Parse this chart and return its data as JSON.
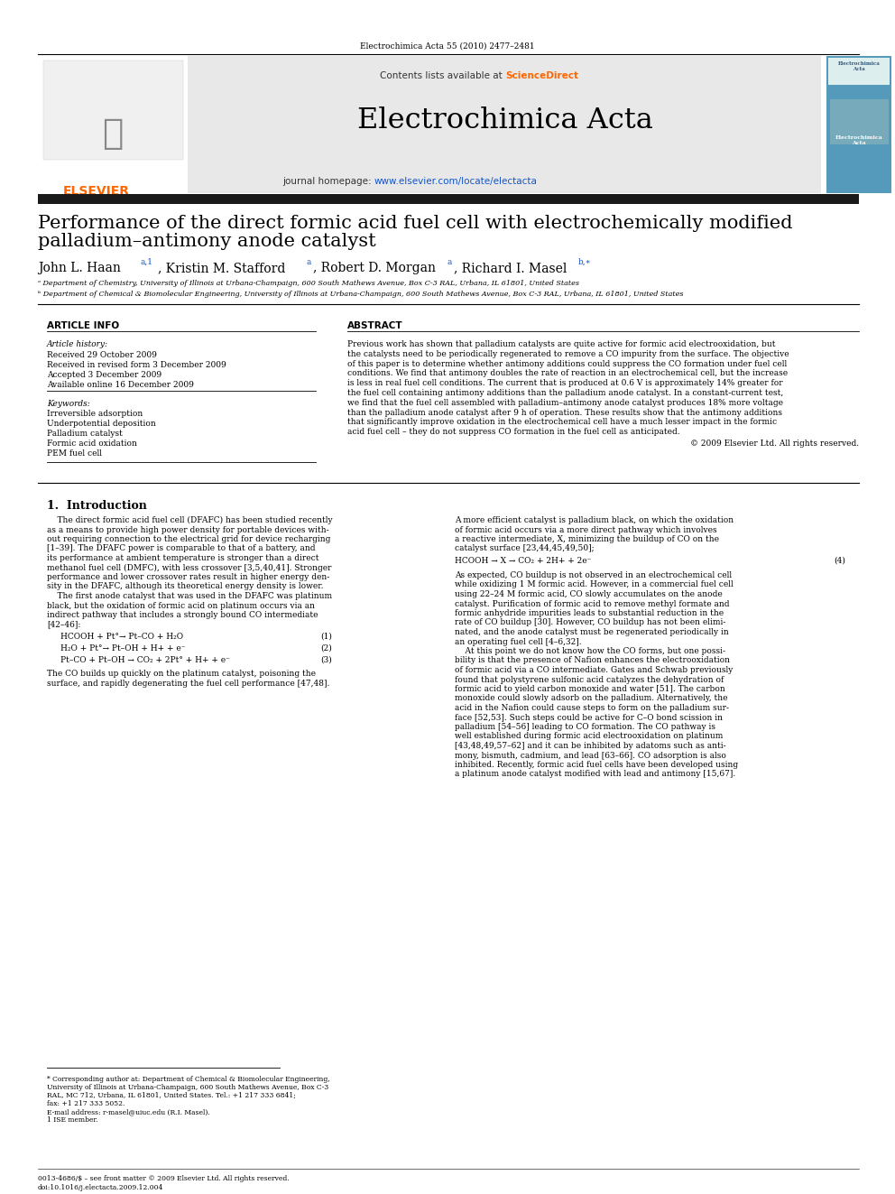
{
  "journal_ref": "Electrochimica Acta 55 (2010) 2477–2481",
  "journal_name": "Electrochimica Acta",
  "contents_text": "Contents lists available at ScienceDirect",
  "journal_url": "www.elsevier.com/locate/electacta",
  "sd_color": "#FF6600",
  "url_color": "#1155CC",
  "blue_color": "#1155CC",
  "gray_bg": "#e8e8e8",
  "dark_bar_color": "#222222",
  "title_line1": "Performance of the direct formic acid fuel cell with electrochemically modified",
  "title_line2": "palladium–antimony anode catalyst",
  "author_name1": "John L. Haan",
  "author_sup1": "a,1",
  "author_name2": ", Kristin M. Stafford",
  "author_sup2": "a",
  "author_name3": ", Robert D. Morgan",
  "author_sup3": "a",
  "author_name4": ", Richard I. Masel",
  "author_sup4": "b,∗",
  "affil_a": "ᵃ Department of Chemistry, University of Illinois at Urbana-Champaign, 600 South Mathews Avenue, Box C-3 RAL, Urbana, IL 61801, United States",
  "affil_b": "ᵇ Department of Chemical & Biomolecular Engineering, University of Illinois at Urbana-Champaign, 600 South Mathews Avenue, Box C-3 RAL, Urbana, IL 61801, United States",
  "section_ai": "ARTICLE INFO",
  "section_abs": "ABSTRACT",
  "history_label": "Article history:",
  "received1": "Received 29 October 2009",
  "received2": "Received in revised form 3 December 2009",
  "accepted": "Accepted 3 December 2009",
  "available": "Available online 16 December 2009",
  "kw_label": "Keywords:",
  "keywords": [
    "Irreversible adsorption",
    "Underpotential deposition",
    "Palladium catalyst",
    "Formic acid oxidation",
    "PEM fuel cell"
  ],
  "abstract_lines": [
    "Previous work has shown that palladium catalysts are quite active for formic acid electrooxidation, but",
    "the catalysts need to be periodically regenerated to remove a CO impurity from the surface. The objective",
    "of this paper is to determine whether antimony additions could suppress the CO formation under fuel cell",
    "conditions. We find that antimony doubles the rate of reaction in an electrochemical cell, but the increase",
    "is less in real fuel cell conditions. The current that is produced at 0.6 V is approximately 14% greater for",
    "the fuel cell containing antimony additions than the palladium anode catalyst. In a constant-current test,",
    "we find that the fuel cell assembled with palladium–antimony anode catalyst produces 18% more voltage",
    "than the palladium anode catalyst after 9 h of operation. These results show that the antimony additions",
    "that significantly improve oxidation in the electrochemical cell have a much lesser impact in the formic",
    "acid fuel cell – they do not suppress CO formation in the fuel cell as anticipated."
  ],
  "copyright": "© 2009 Elsevier Ltd. All rights reserved.",
  "sec1_title": "1.  Introduction",
  "intro_left": [
    "    The direct formic acid fuel cell (DFAFC) has been studied recently",
    "as a means to provide high power density for portable devices with-",
    "out requiring connection to the electrical grid for device recharging",
    "[1–39]. The DFAFC power is comparable to that of a battery, and",
    "its performance at ambient temperature is stronger than a direct",
    "methanol fuel cell (DMFC), with less crossover [3,5,40,41]. Stronger",
    "performance and lower crossover rates result in higher energy den-",
    "sity in the DFAFC, although its theoretical energy density is lower.",
    "    The first anode catalyst that was used in the DFAFC was platinum",
    "black, but the oxidation of formic acid on platinum occurs via an",
    "indirect pathway that includes a strongly bound CO intermediate",
    "[42–46]:"
  ],
  "rxn1": "HCOOH + Pt°→ Pt–CO + H₂O",
  "rxn1_n": "(1)",
  "rxn2": "H₂O + Pt°→ Pt–OH + H+ + e⁻",
  "rxn2_n": "(2)",
  "rxn3": "Pt–CO + Pt–OH → CO₂ + 2Pt° + H+ + e⁻",
  "rxn3_n": "(3)",
  "co_text1": "The CO builds up quickly on the platinum catalyst, poisoning the",
  "co_text2": "surface, and rapidly degenerating the fuel cell performance [47,48].",
  "intro_right": [
    "A more efficient catalyst is palladium black, on which the oxidation",
    "of formic acid occurs via a more direct pathway which involves",
    "a reactive intermediate, X, minimizing the buildup of CO on the",
    "catalyst surface [23,44,45,49,50];"
  ],
  "rxn4": "HCOOH → X → CO₂ + 2H+ + 2e⁻",
  "rxn4_n": "(4)",
  "intro_right2": [
    "As expected, CO buildup is not observed in an electrochemical cell",
    "while oxidizing 1 M formic acid. However, in a commercial fuel cell",
    "using 22–24 M formic acid, CO slowly accumulates on the anode",
    "catalyst. Purification of formic acid to remove methyl formate and",
    "formic anhydride impurities leads to substantial reduction in the",
    "rate of CO buildup [30]. However, CO buildup has not been elimi-",
    "nated, and the anode catalyst must be regenerated periodically in",
    "an operating fuel cell [4–6,32].",
    "    At this point we do not know how the CO forms, but one possi-",
    "bility is that the presence of Nafion enhances the electrooxidation",
    "of formic acid via a CO intermediate. Gates and Schwab previously",
    "found that polystyrene sulfonic acid catalyzes the dehydration of",
    "formic acid to yield carbon monoxide and water [51]. The carbon",
    "monoxide could slowly adsorb on the palladium. Alternatively, the",
    "acid in the Nafion could cause steps to form on the palladium sur-",
    "face [52,53]. Such steps could be active for C–O bond scission in",
    "palladium [54–56] leading to CO formation. The CO pathway is",
    "well established during formic acid electrooxidation on platinum",
    "[43,48,49,57–62] and it can be inhibited by adatoms such as anti-",
    "mony, bismuth, cadmium, and lead [63–66]. CO adsorption is also",
    "inhibited. Recently, formic acid fuel cells have been developed using",
    "a platinum anode catalyst modified with lead and antimony [15,67]."
  ],
  "fn_line1": "* Corresponding author at: Department of Chemical & Biomolecular Engineering, University of Illinois at Urbana-Champaign, 600 South Mathews Avenue, Box C-3",
  "fn_line2": "RAL, MC 712, Urbana, IL 61801, United States. Tel.: +1 217 333 6841; fax: +1 217 333 5052.",
  "fn_email": "E-mail address: r-masel@uiuc.edu (R.I. Masel).",
  "fn_ise": "1 ISE member.",
  "footer1": "0013-4686/$ – see front matter © 2009 Elsevier Ltd. All rights reserved.",
  "footer2": "doi:10.1016/j.electacta.2009.12.004"
}
